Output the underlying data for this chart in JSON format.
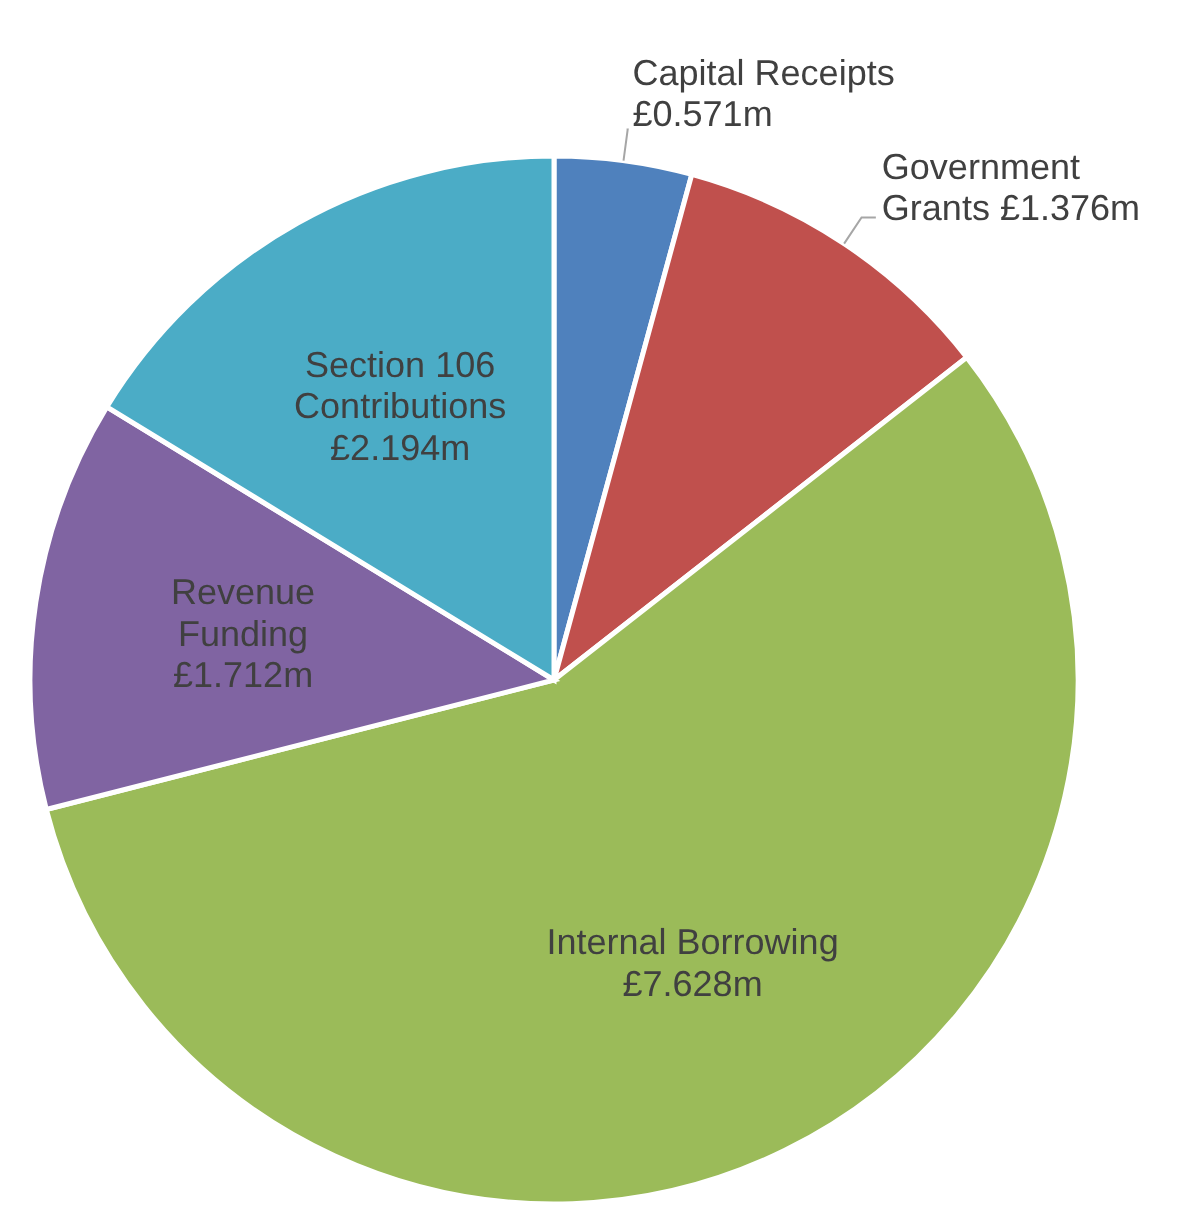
{
  "chart_data": {
    "type": "pie",
    "categories": [
      "Capital Receipts",
      "Government Grants",
      "Internal Borrowing",
      "Revenue Funding",
      "Section 106 Contributions"
    ],
    "values": [
      0.571,
      1.376,
      7.628,
      1.712,
      2.194
    ],
    "value_labels": [
      "£0.571m",
      "£1.376m",
      "£7.628m",
      "£1.712m",
      "£2.194m"
    ],
    "colors": [
      "#4f81bd",
      "#c0504d",
      "#9bbb59",
      "#8064a2",
      "#4bacc6"
    ]
  }
}
